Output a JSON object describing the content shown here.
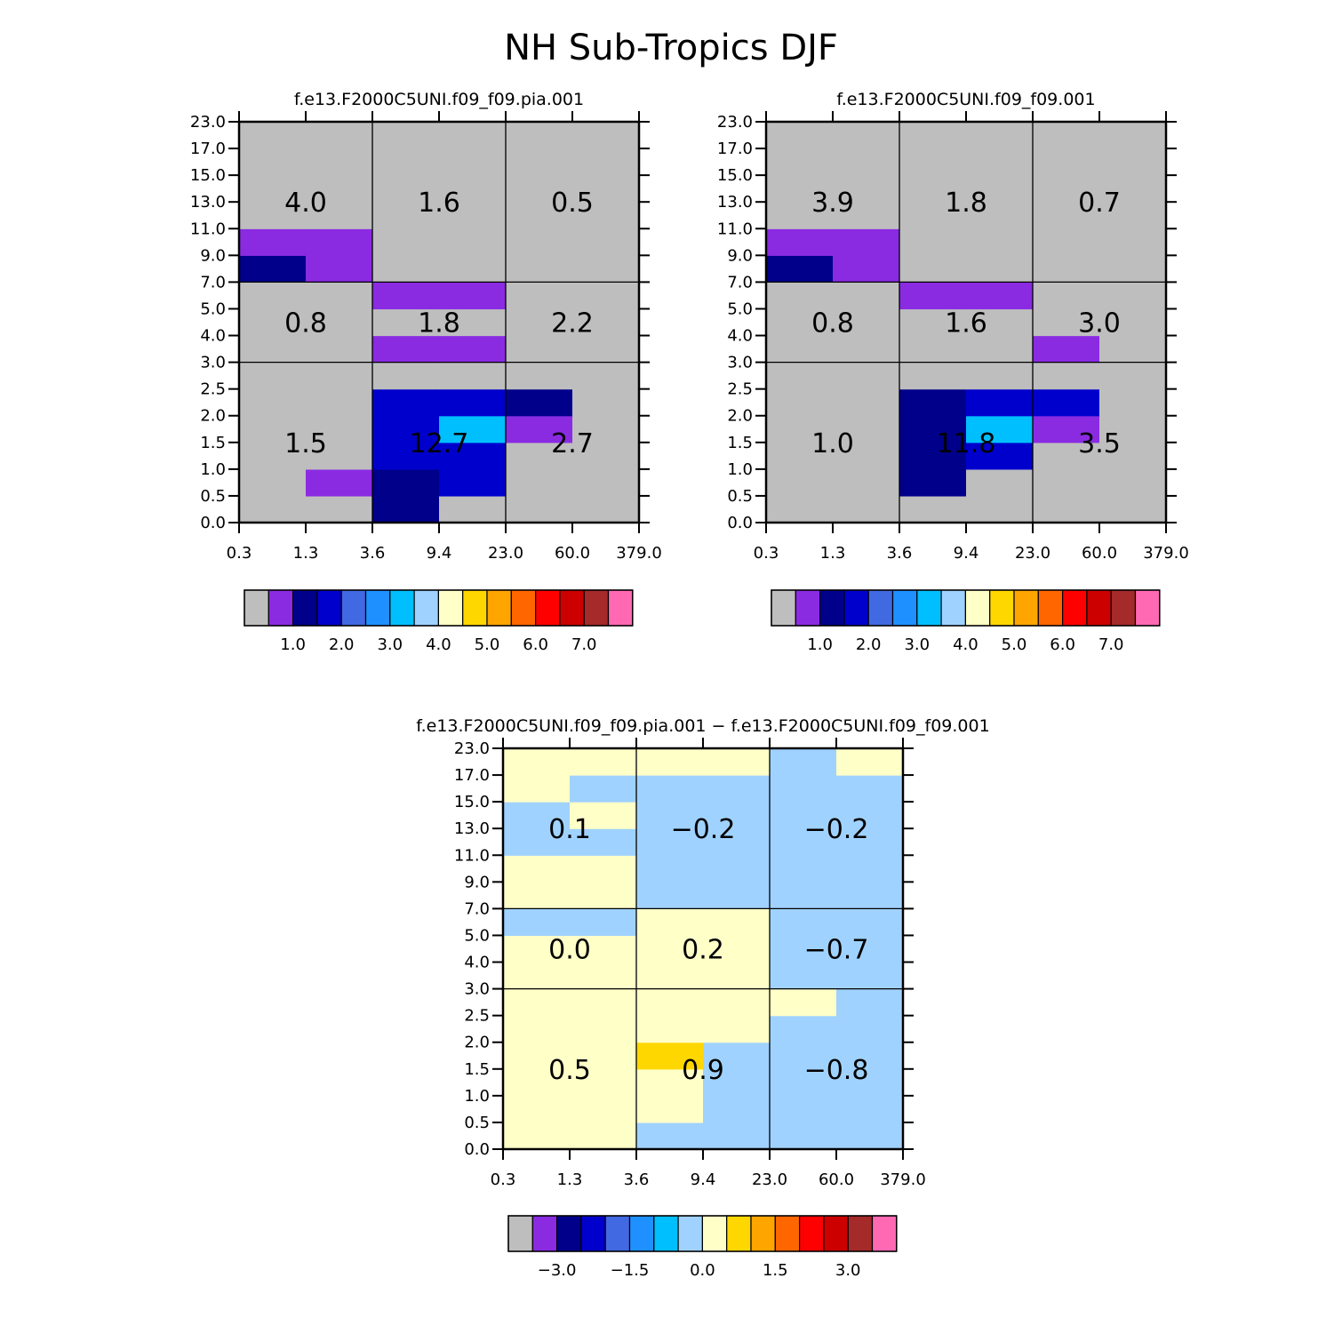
{
  "figure": {
    "title": "NH Sub-Tropics DJF",
    "background": "#ffffff"
  },
  "chart_data": [
    {
      "type": "heatmap",
      "title": "f.e13.F2000C5UNI.f09_f09.pia.001",
      "x_ticks": [
        "0.3",
        "1.3",
        "3.6",
        "9.4",
        "23.0",
        "60.0",
        "379.0"
      ],
      "y_ticks": [
        "0.0",
        "0.5",
        "1.0",
        "1.5",
        "2.0",
        "2.5",
        "3.0",
        "4.0",
        "5.0",
        "7.0",
        "9.0",
        "11.0",
        "13.0",
        "15.0",
        "17.0",
        "23.0"
      ],
      "grid": "cell colour index per x bin (6) and y bin (15), rows listed bottom to top; 0 = grey",
      "cells": [
        [
          0,
          0,
          2,
          0,
          0,
          0
        ],
        [
          0,
          1,
          2,
          3,
          0,
          0
        ],
        [
          0,
          0,
          3,
          3,
          0,
          0
        ],
        [
          0,
          0,
          3,
          6,
          1,
          0
        ],
        [
          0,
          0,
          3,
          3,
          2,
          0
        ],
        [
          0,
          0,
          0,
          0,
          0,
          0
        ],
        [
          0,
          0,
          1,
          1,
          0,
          0
        ],
        [
          0,
          0,
          0,
          0,
          0,
          0
        ],
        [
          0,
          0,
          1,
          1,
          0,
          0
        ],
        [
          2,
          1,
          0,
          0,
          0,
          0
        ],
        [
          1,
          1,
          0,
          0,
          0,
          0
        ],
        [
          0,
          0,
          0,
          0,
          0,
          0
        ],
        [
          0,
          0,
          0,
          0,
          0,
          0
        ],
        [
          0,
          0,
          0,
          0,
          0,
          0
        ],
        [
          0,
          0,
          0,
          0,
          0,
          0
        ]
      ],
      "dividers": {
        "x_bins": [
          2,
          4
        ],
        "y_bins": [
          6,
          9
        ]
      },
      "cell_labels": [
        {
          "value": "1.5",
          "col": 0.5,
          "row": 0
        },
        {
          "value": "12.7",
          "col": 1.5,
          "row": 0
        },
        {
          "value": "2.7",
          "col": 2.5,
          "row": 0
        },
        {
          "value": "0.8",
          "col": 0.5,
          "row": 1
        },
        {
          "value": "1.8",
          "col": 1.5,
          "row": 1
        },
        {
          "value": "2.2",
          "col": 2.5,
          "row": 1
        },
        {
          "value": "4.0",
          "col": 0.5,
          "row": 2
        },
        {
          "value": "1.6",
          "col": 1.5,
          "row": 2
        },
        {
          "value": "0.5",
          "col": 2.5,
          "row": 2
        }
      ],
      "colorbar": {
        "colors": [
          "#bebebe",
          "#8a2be2",
          "#00008b",
          "#0000cd",
          "#4169e1",
          "#1e90ff",
          "#00bfff",
          "#a0d2ff",
          "#ffffc8",
          "#ffd700",
          "#ffa500",
          "#ff6600",
          "#ff0000",
          "#cd0000",
          "#a52a2a",
          "#ff69b4"
        ],
        "labels": [
          {
            "text": "1.0",
            "after_box": 2
          },
          {
            "text": "2.0",
            "after_box": 4
          },
          {
            "text": "3.0",
            "after_box": 6
          },
          {
            "text": "4.0",
            "after_box": 8
          },
          {
            "text": "5.0",
            "after_box": 10
          },
          {
            "text": "6.0",
            "after_box": 12
          },
          {
            "text": "7.0",
            "after_box": 14
          }
        ]
      }
    },
    {
      "type": "heatmap",
      "title": "f.e13.F2000C5UNI.f09_f09.001",
      "x_ticks": [
        "0.3",
        "1.3",
        "3.6",
        "9.4",
        "23.0",
        "60.0",
        "379.0"
      ],
      "y_ticks": [
        "0.0",
        "0.5",
        "1.0",
        "1.5",
        "2.0",
        "2.5",
        "3.0",
        "4.0",
        "5.0",
        "7.0",
        "9.0",
        "11.0",
        "13.0",
        "15.0",
        "17.0",
        "23.0"
      ],
      "grid": "cell colour index per x bin (6) and y bin (15), rows listed bottom to top; 0 = grey",
      "cells": [
        [
          0,
          0,
          0,
          0,
          0,
          0
        ],
        [
          0,
          0,
          2,
          0,
          0,
          0
        ],
        [
          0,
          0,
          2,
          3,
          0,
          0
        ],
        [
          0,
          0,
          2,
          6,
          1,
          0
        ],
        [
          0,
          0,
          2,
          3,
          3,
          0
        ],
        [
          0,
          0,
          0,
          0,
          0,
          0
        ],
        [
          0,
          0,
          0,
          0,
          1,
          0
        ],
        [
          0,
          0,
          0,
          0,
          0,
          0
        ],
        [
          0,
          0,
          1,
          1,
          0,
          0
        ],
        [
          2,
          1,
          0,
          0,
          0,
          0
        ],
        [
          1,
          1,
          0,
          0,
          0,
          0
        ],
        [
          0,
          0,
          0,
          0,
          0,
          0
        ],
        [
          0,
          0,
          0,
          0,
          0,
          0
        ],
        [
          0,
          0,
          0,
          0,
          0,
          0
        ],
        [
          0,
          0,
          0,
          0,
          0,
          0
        ]
      ],
      "dividers": {
        "x_bins": [
          2,
          4
        ],
        "y_bins": [
          6,
          9
        ]
      },
      "cell_labels": [
        {
          "value": "1.0",
          "col": 0.5,
          "row": 0
        },
        {
          "value": "11.8",
          "col": 1.5,
          "row": 0
        },
        {
          "value": "3.5",
          "col": 2.5,
          "row": 0
        },
        {
          "value": "0.8",
          "col": 0.5,
          "row": 1
        },
        {
          "value": "1.6",
          "col": 1.5,
          "row": 1
        },
        {
          "value": "3.0",
          "col": 2.5,
          "row": 1
        },
        {
          "value": "3.9",
          "col": 0.5,
          "row": 2
        },
        {
          "value": "1.8",
          "col": 1.5,
          "row": 2
        },
        {
          "value": "0.7",
          "col": 2.5,
          "row": 2
        }
      ],
      "colorbar": {
        "colors": [
          "#bebebe",
          "#8a2be2",
          "#00008b",
          "#0000cd",
          "#4169e1",
          "#1e90ff",
          "#00bfff",
          "#a0d2ff",
          "#ffffc8",
          "#ffd700",
          "#ffa500",
          "#ff6600",
          "#ff0000",
          "#cd0000",
          "#a52a2a",
          "#ff69b4"
        ],
        "labels": [
          {
            "text": "1.0",
            "after_box": 2
          },
          {
            "text": "2.0",
            "after_box": 4
          },
          {
            "text": "3.0",
            "after_box": 6
          },
          {
            "text": "4.0",
            "after_box": 8
          },
          {
            "text": "5.0",
            "after_box": 10
          },
          {
            "text": "6.0",
            "after_box": 12
          },
          {
            "text": "7.0",
            "after_box": 14
          }
        ]
      }
    },
    {
      "type": "heatmap",
      "title": "f.e13.F2000C5UNI.f09_f09.pia.001 − f.e13.F2000C5UNI.f09_f09.001",
      "x_ticks": [
        "0.3",
        "1.3",
        "3.6",
        "9.4",
        "23.0",
        "60.0",
        "379.0"
      ],
      "y_ticks": [
        "0.0",
        "0.5",
        "1.0",
        "1.5",
        "2.0",
        "2.5",
        "3.0",
        "4.0",
        "5.0",
        "7.0",
        "9.0",
        "11.0",
        "13.0",
        "15.0",
        "17.0",
        "23.0"
      ],
      "grid": "cell colour index per x bin (6) and y bin (15), rows listed bottom to top; 7 = light blue, 8 = pale yellow, 9 = gold",
      "cells": [
        [
          8,
          8,
          7,
          7,
          7,
          7
        ],
        [
          8,
          8,
          8,
          7,
          7,
          7
        ],
        [
          8,
          8,
          8,
          7,
          7,
          7
        ],
        [
          8,
          8,
          9,
          7,
          7,
          7
        ],
        [
          8,
          8,
          8,
          8,
          7,
          7
        ],
        [
          8,
          8,
          8,
          8,
          8,
          7
        ],
        [
          8,
          8,
          8,
          8,
          7,
          7
        ],
        [
          8,
          8,
          8,
          8,
          7,
          7
        ],
        [
          7,
          7,
          8,
          8,
          7,
          7
        ],
        [
          8,
          8,
          7,
          7,
          7,
          7
        ],
        [
          8,
          8,
          7,
          7,
          7,
          7
        ],
        [
          7,
          7,
          7,
          7,
          7,
          7
        ],
        [
          7,
          8,
          7,
          7,
          7,
          7
        ],
        [
          8,
          7,
          7,
          7,
          7,
          7
        ],
        [
          8,
          8,
          8,
          8,
          7,
          8
        ]
      ],
      "dividers": {
        "x_bins": [
          2,
          4
        ],
        "y_bins": [
          6,
          9
        ]
      },
      "cell_labels": [
        {
          "value": "0.5",
          "col": 0.5,
          "row": 0
        },
        {
          "value": "0.9",
          "col": 1.5,
          "row": 0
        },
        {
          "value": "−0.8",
          "col": 2.5,
          "row": 0
        },
        {
          "value": "0.0",
          "col": 0.5,
          "row": 1
        },
        {
          "value": "0.2",
          "col": 1.5,
          "row": 1
        },
        {
          "value": "−0.7",
          "col": 2.5,
          "row": 1
        },
        {
          "value": "0.1",
          "col": 0.5,
          "row": 2
        },
        {
          "value": "−0.2",
          "col": 1.5,
          "row": 2
        },
        {
          "value": "−0.2",
          "col": 2.5,
          "row": 2
        }
      ],
      "colorbar": {
        "colors": [
          "#bebebe",
          "#8a2be2",
          "#00008b",
          "#0000cd",
          "#4169e1",
          "#1e90ff",
          "#00bfff",
          "#a0d2ff",
          "#ffffc8",
          "#ffd700",
          "#ffa500",
          "#ff6600",
          "#ff0000",
          "#cd0000",
          "#a52a2a",
          "#ff69b4"
        ],
        "labels": [
          {
            "text": "−3.0",
            "after_box": 2
          },
          {
            "text": "−1.5",
            "after_box": 5
          },
          {
            "text": "0.0",
            "after_box": 8
          },
          {
            "text": "1.5",
            "after_box": 11
          },
          {
            "text": "3.0",
            "after_box": 14
          }
        ]
      }
    }
  ]
}
